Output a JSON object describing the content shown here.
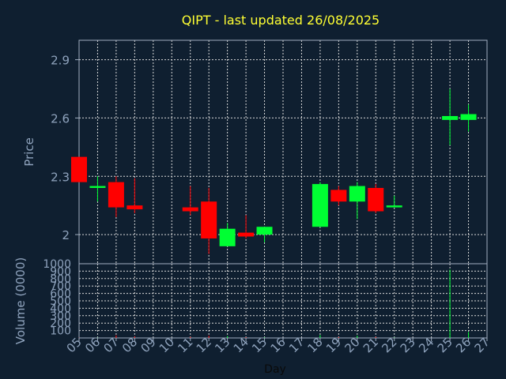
{
  "chart_data": {
    "type": "candlestick",
    "title": "QIPT - last updated 26/08/2025",
    "xlabel": "Day",
    "price_panel": {
      "ylabel": "Price",
      "ylim": [
        1.85,
        3.0
      ],
      "yticks": [
        "2",
        "2.3",
        "2.6",
        "2.9"
      ],
      "grid": true
    },
    "volume_panel": {
      "ylabel": "Volume (0000)",
      "ylim": [
        0,
        1000
      ],
      "yticks": [
        "100",
        "200",
        "300",
        "400",
        "500",
        "600",
        "700",
        "800",
        "900",
        "1000"
      ],
      "grid": true
    },
    "xticks": [
      "05",
      "06",
      "07",
      "08",
      "09",
      "10",
      "11",
      "12",
      "13",
      "14",
      "15",
      "16",
      "17",
      "18",
      "19",
      "20",
      "21",
      "22",
      "23",
      "24",
      "25",
      "26",
      "27"
    ],
    "candles": [
      {
        "day": "05",
        "open": 2.4,
        "high": 2.4,
        "low": 2.27,
        "close": 2.27,
        "volume": 2
      },
      {
        "day": "06",
        "open": 2.24,
        "high": 2.3,
        "low": 2.17,
        "close": 2.25,
        "volume": 3
      },
      {
        "day": "07",
        "open": 2.27,
        "high": 2.3,
        "low": 2.09,
        "close": 2.14,
        "volume": 35
      },
      {
        "day": "08",
        "open": 2.15,
        "high": 2.29,
        "low": 2.11,
        "close": 2.13,
        "volume": 20
      },
      {
        "day": "11",
        "open": 2.14,
        "high": 2.25,
        "low": 2.1,
        "close": 2.12,
        "volume": 15
      },
      {
        "day": "12",
        "open": 2.17,
        "high": 2.24,
        "low": 1.9,
        "close": 1.98,
        "volume": 30
      },
      {
        "day": "13",
        "open": 1.94,
        "high": 2.06,
        "low": 1.94,
        "close": 2.03,
        "volume": 25
      },
      {
        "day": "14",
        "open": 2.01,
        "high": 2.1,
        "low": 1.98,
        "close": 1.99,
        "volume": 10
      },
      {
        "day": "15",
        "open": 2.0,
        "high": 2.04,
        "low": 1.96,
        "close": 2.04,
        "volume": 8
      },
      {
        "day": "18",
        "open": 2.04,
        "high": 2.27,
        "low": 2.04,
        "close": 2.26,
        "volume": 40
      },
      {
        "day": "19",
        "open": 2.23,
        "high": 2.25,
        "low": 2.15,
        "close": 2.17,
        "volume": 12
      },
      {
        "day": "20",
        "open": 2.17,
        "high": 2.27,
        "low": 2.08,
        "close": 2.25,
        "volume": 30
      },
      {
        "day": "21",
        "open": 2.24,
        "high": 2.26,
        "low": 2.11,
        "close": 2.12,
        "volume": 15
      },
      {
        "day": "22",
        "open": 2.14,
        "high": 2.2,
        "low": 2.14,
        "close": 2.15,
        "volume": 5
      },
      {
        "day": "25",
        "open": 2.59,
        "high": 2.75,
        "low": 2.46,
        "close": 2.61,
        "volume": 920
      },
      {
        "day": "26",
        "open": 2.59,
        "high": 2.67,
        "low": 2.53,
        "close": 2.62,
        "volume": 80
      }
    ],
    "colors": {
      "background": "#0f1f30",
      "grid": "#d8d8d8",
      "axis": "#a0aec0",
      "title": "#ffff33",
      "up": "#00ff33",
      "down": "#ff0000",
      "text": "#8fa3bd"
    }
  }
}
